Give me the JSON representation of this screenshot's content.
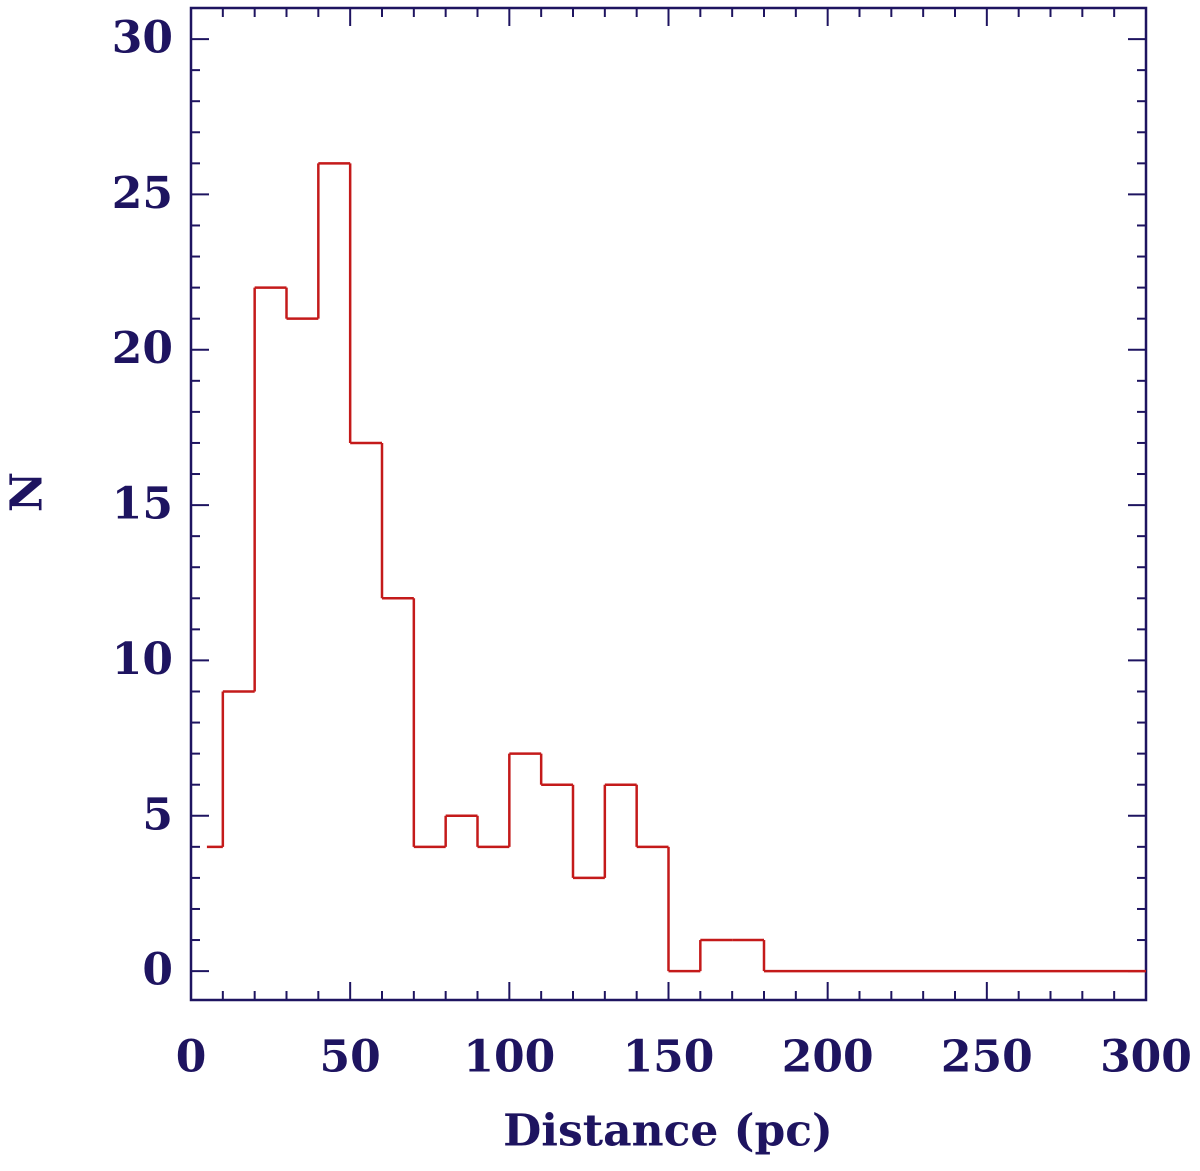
{
  "chart_data": {
    "type": "histogram",
    "xlabel": "Distance (pc)",
    "ylabel": "N",
    "bins": [
      5,
      10,
      20,
      30,
      40,
      50,
      60,
      70,
      80,
      90,
      100,
      110,
      120,
      130,
      140,
      150,
      160,
      170,
      180,
      300
    ],
    "values": [
      4,
      9,
      22,
      21,
      26,
      17,
      12,
      4,
      5,
      4,
      7,
      6,
      3,
      6,
      4,
      0,
      1,
      1,
      0
    ],
    "color": "#c41a1a",
    "axis_color": "#1e1460",
    "xlim": [
      0,
      300
    ],
    "xticks": [
      0,
      50,
      100,
      150,
      200,
      250,
      300
    ],
    "ylim": [
      -0.93,
      31
    ],
    "yticks": [
      0,
      5,
      10,
      15,
      20,
      25,
      30
    ]
  }
}
